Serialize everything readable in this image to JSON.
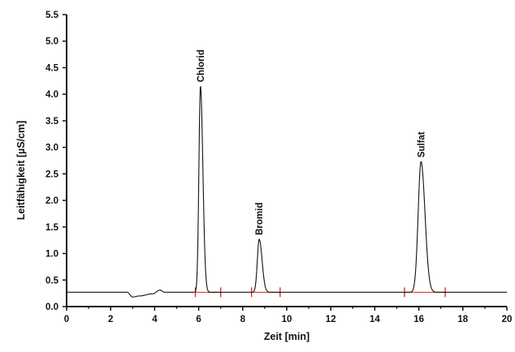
{
  "chart_data": {
    "type": "line",
    "xlabel": "Zeit [min]",
    "ylabel": "Leitfähigkeit [µS/cm]",
    "xlim": [
      0,
      20
    ],
    "ylim": [
      0,
      5.5
    ],
    "x_ticks": [
      "0",
      "2",
      "4",
      "6",
      "8",
      "10",
      "12",
      "14",
      "16",
      "18",
      "20"
    ],
    "y_ticks": [
      "0.0",
      "0.5",
      "1.0",
      "1.5",
      "2.0",
      "2.5",
      "3.0",
      "3.5",
      "4.0",
      "4.5",
      "5.0",
      "5.5"
    ],
    "grid": false,
    "colors": {
      "trace": "#111111",
      "integration": "#d62020"
    },
    "baseline": 0.27,
    "disturbances": [
      {
        "time": 2.75,
        "value": 0.27
      },
      {
        "time": 3.0,
        "value": 0.18
      },
      {
        "time": 3.3,
        "value": 0.2
      },
      {
        "time": 3.9,
        "value": 0.24
      },
      {
        "time": 4.25,
        "value": 0.31
      },
      {
        "time": 4.45,
        "value": 0.27
      }
    ],
    "peaks": [
      {
        "label": "Chlorid",
        "time": 6.08,
        "height": 4.15,
        "integration": [
          5.85,
          7.0
        ]
      },
      {
        "label": "Bromid",
        "time": 8.75,
        "height": 1.27,
        "integration": [
          8.4,
          9.7
        ]
      },
      {
        "label": "Sulfat",
        "time": 16.1,
        "height": 2.73,
        "integration": [
          15.35,
          17.2
        ]
      }
    ]
  }
}
